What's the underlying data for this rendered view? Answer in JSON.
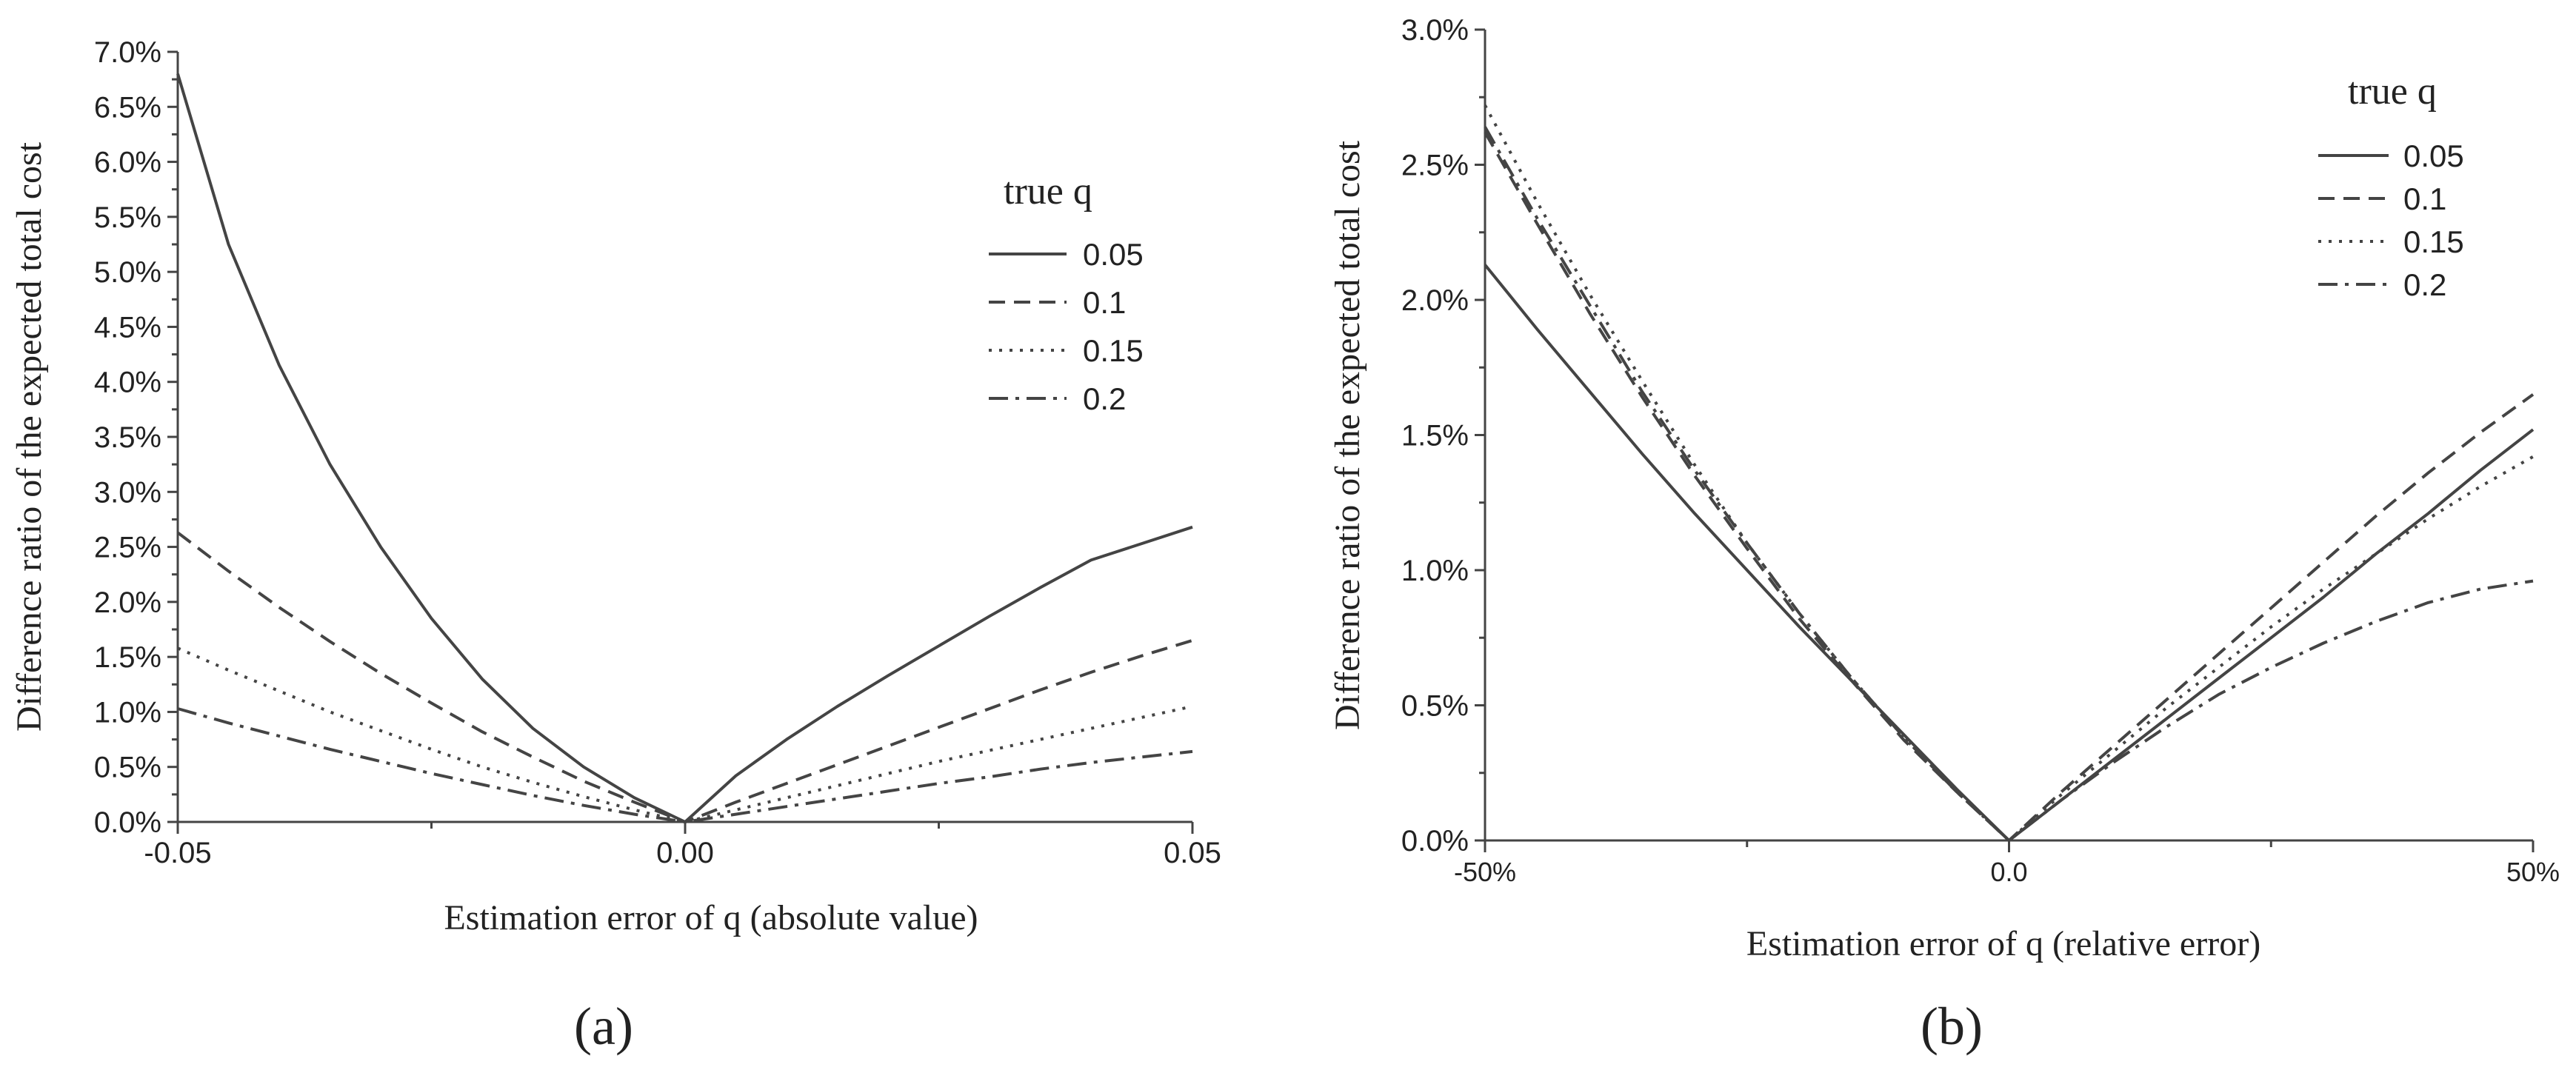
{
  "panel_labels": [
    "(a)",
    "(b)"
  ],
  "colors": {
    "ink": "#444444",
    "text": "#222222",
    "background": "#ffffff"
  },
  "chart_data": [
    {
      "type": "line",
      "panel": "(a)",
      "title": "",
      "xlabel": "Estimation error of q (absolute value)",
      "ylabel": "Difference ratio of the expected total cost",
      "xlim": [
        -0.05,
        0.05
      ],
      "ylim": [
        0,
        0.07
      ],
      "x_ticks": [
        -0.05,
        0.0,
        0.05
      ],
      "x_tick_labels": [
        "-0.05",
        "0.00",
        "0.05"
      ],
      "y_ticks": [
        0,
        0.005,
        0.01,
        0.015,
        0.02,
        0.025,
        0.03,
        0.035,
        0.04,
        0.045,
        0.05,
        0.055,
        0.06,
        0.065,
        0.07
      ],
      "y_tick_labels": [
        "0.0%",
        "0.5%",
        "1.0%",
        "1.5%",
        "2.0%",
        "2.5%",
        "3.0%",
        "3.5%",
        "4.0%",
        "4.5%",
        "5.0%",
        "5.5%",
        "6.0%",
        "6.5%",
        "7.0%"
      ],
      "legend_title": "true q",
      "legend_position": "upper-right",
      "grid": false,
      "x": [
        -0.05,
        -0.045,
        -0.04,
        -0.035,
        -0.03,
        -0.025,
        -0.02,
        -0.015,
        -0.01,
        -0.005,
        0.0,
        0.005,
        0.01,
        0.015,
        0.02,
        0.025,
        0.03,
        0.035,
        0.04,
        0.045,
        0.05
      ],
      "series": [
        {
          "name": "0.05",
          "style": "solid",
          "values": [
            0.068,
            0.0525,
            0.0415,
            0.0325,
            0.025,
            0.0185,
            0.013,
            0.0085,
            0.005,
            0.0022,
            0.0,
            0.0042,
            0.0075,
            0.0105,
            0.0133,
            0.016,
            0.0187,
            0.0213,
            0.0238,
            0.0253,
            0.0268
          ]
        },
        {
          "name": "0.1",
          "style": "dashed",
          "values": [
            0.0263,
            0.0228,
            0.0195,
            0.0164,
            0.0135,
            0.0108,
            0.0082,
            0.0059,
            0.0037,
            0.0018,
            0.0,
            0.0018,
            0.0035,
            0.0052,
            0.0069,
            0.0086,
            0.0103,
            0.012,
            0.0136,
            0.0151,
            0.0165
          ]
        },
        {
          "name": "0.15",
          "style": "dotted",
          "values": [
            0.0158,
            0.0138,
            0.0119,
            0.01,
            0.0083,
            0.0066,
            0.005,
            0.0036,
            0.0023,
            0.0011,
            0.0,
            0.0011,
            0.0022,
            0.0033,
            0.0044,
            0.0055,
            0.0065,
            0.0075,
            0.0085,
            0.0095,
            0.0105
          ]
        },
        {
          "name": "0.2",
          "style": "dashdot",
          "values": [
            0.0103,
            0.009,
            0.0078,
            0.0066,
            0.0055,
            0.0044,
            0.0034,
            0.0024,
            0.0015,
            0.0007,
            0.0,
            0.0007,
            0.0014,
            0.0021,
            0.0028,
            0.0035,
            0.0041,
            0.0048,
            0.0054,
            0.0059,
            0.0064
          ]
        }
      ]
    },
    {
      "type": "line",
      "panel": "(b)",
      "title": "",
      "xlabel": "Estimation error of q (relative error)",
      "ylabel": "Difference ratio of the expected total cost",
      "xlim": [
        -0.5,
        0.5
      ],
      "ylim": [
        0,
        0.03
      ],
      "x_ticks": [
        -0.5,
        0.0,
        0.5
      ],
      "x_tick_labels": [
        "-50%",
        "0.0",
        "50%"
      ],
      "y_ticks": [
        0,
        0.005,
        0.01,
        0.015,
        0.02,
        0.025,
        0.03
      ],
      "y_tick_labels": [
        "0.0%",
        "0.5%",
        "1.0%",
        "1.5%",
        "2.0%",
        "2.5%",
        "3.0%"
      ],
      "legend_title": "true q",
      "legend_position": "upper-right",
      "grid": false,
      "x": [
        -0.5,
        -0.45,
        -0.4,
        -0.35,
        -0.3,
        -0.25,
        -0.2,
        -0.15,
        -0.1,
        -0.05,
        0.0,
        0.05,
        0.1,
        0.15,
        0.2,
        0.25,
        0.3,
        0.35,
        0.4,
        0.45,
        0.5
      ],
      "series": [
        {
          "name": "0.05",
          "style": "solid",
          "values": [
            0.0213,
            0.0189,
            0.0166,
            0.0143,
            0.0121,
            0.01,
            0.0079,
            0.0059,
            0.0039,
            0.0019,
            0.0,
            0.0015,
            0.003,
            0.0045,
            0.006,
            0.0075,
            0.009,
            0.0106,
            0.0121,
            0.0137,
            0.0152
          ]
        },
        {
          "name": "0.1",
          "style": "dashed",
          "values": [
            0.0262,
            0.0228,
            0.0195,
            0.0164,
            0.0135,
            0.0108,
            0.0082,
            0.0059,
            0.0037,
            0.0018,
            0.0,
            0.0018,
            0.0035,
            0.0052,
            0.0069,
            0.0086,
            0.0103,
            0.012,
            0.0136,
            0.0151,
            0.0165
          ]
        },
        {
          "name": "0.15",
          "style": "dotted",
          "values": [
            0.0272,
            0.0236,
            0.0202,
            0.017,
            0.0139,
            0.011,
            0.0084,
            0.006,
            0.0038,
            0.0018,
            0.0,
            0.0017,
            0.0033,
            0.0049,
            0.0064,
            0.0079,
            0.0093,
            0.0106,
            0.0119,
            0.0131,
            0.0142
          ]
        },
        {
          "name": "0.2",
          "style": "dashdot",
          "values": [
            0.0264,
            0.023,
            0.0198,
            0.0166,
            0.0137,
            0.011,
            0.0084,
            0.006,
            0.0038,
            0.0018,
            0.0,
            0.0015,
            0.0029,
            0.0042,
            0.0054,
            0.0064,
            0.0073,
            0.0081,
            0.0088,
            0.0093,
            0.0096
          ]
        }
      ]
    }
  ]
}
